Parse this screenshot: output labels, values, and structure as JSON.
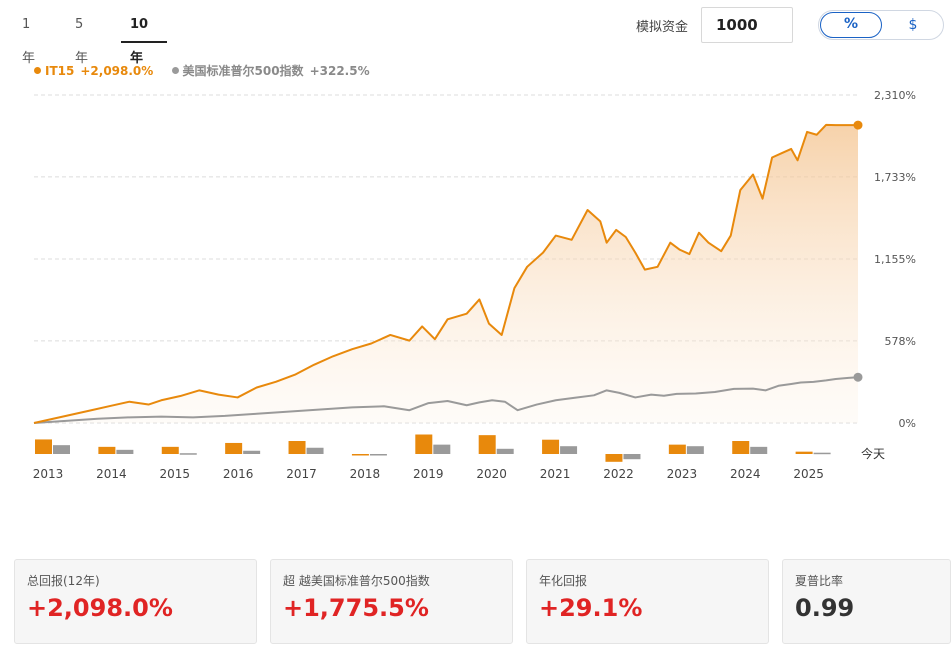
{
  "tabs": [
    {
      "label": "1年"
    },
    {
      "label": "5年"
    },
    {
      "label": "10年"
    }
  ],
  "active_tab": "10年",
  "simulator": {
    "label": "模拟资金",
    "value": "1000"
  },
  "unit_toggle": {
    "percent": "%",
    "dollar": "$",
    "selected": "%"
  },
  "legend": [
    {
      "name": "IT15",
      "value": "+2,098.0%",
      "color": "#e8890c"
    },
    {
      "name": "美国标准普尔500指数",
      "value": "+322.5%",
      "color": "#9a9a9a"
    }
  ],
  "today_label": "今天",
  "chart_data": {
    "type": "line",
    "ylim": [
      0,
      2310
    ],
    "y_ticks": [
      "0%",
      "578%",
      "1,155%",
      "1,733%",
      "2,310%"
    ],
    "y_tick_values": [
      0,
      578,
      1155,
      1733,
      2310
    ],
    "x_labels": [
      "2013",
      "2014",
      "2015",
      "2016",
      "2017",
      "2018",
      "2019",
      "2020",
      "2021",
      "2022",
      "2023",
      "2024",
      "2025"
    ],
    "x_range": [
      2013.0,
      2025.95
    ],
    "series": [
      {
        "name": "IT15",
        "color": "#e8890c",
        "x": [
          2013.0,
          2013.3,
          2013.6,
          2013.9,
          2014.2,
          2014.5,
          2014.8,
          2015.0,
          2015.3,
          2015.6,
          2015.9,
          2016.2,
          2016.5,
          2016.8,
          2017.1,
          2017.4,
          2017.7,
          2018.0,
          2018.3,
          2018.6,
          2018.9,
          2019.1,
          2019.3,
          2019.5,
          2019.8,
          2020.0,
          2020.15,
          2020.35,
          2020.55,
          2020.75,
          2021.0,
          2021.2,
          2021.45,
          2021.7,
          2021.9,
          2022.0,
          2022.15,
          2022.3,
          2022.45,
          2022.6,
          2022.8,
          2023.0,
          2023.15,
          2023.3,
          2023.45,
          2023.6,
          2023.8,
          2023.95,
          2024.1,
          2024.3,
          2024.45,
          2024.6,
          2024.75,
          2024.9,
          2025.0,
          2025.15,
          2025.3,
          2025.45,
          2025.6,
          2025.75,
          2025.95
        ],
        "y": [
          0,
          30,
          60,
          90,
          120,
          150,
          130,
          160,
          190,
          230,
          200,
          180,
          250,
          290,
          340,
          410,
          470,
          520,
          560,
          620,
          580,
          680,
          590,
          730,
          770,
          870,
          700,
          620,
          950,
          1100,
          1200,
          1320,
          1290,
          1500,
          1420,
          1270,
          1360,
          1310,
          1200,
          1080,
          1100,
          1270,
          1220,
          1190,
          1340,
          1270,
          1210,
          1320,
          1640,
          1750,
          1580,
          1870,
          1900,
          1930,
          1850,
          2050,
          2030,
          2100,
          2098,
          2098,
          2098
        ]
      },
      {
        "name": "美国标准普尔500指数",
        "color": "#9a9a9a",
        "x": [
          2013.0,
          2013.5,
          2014.0,
          2014.5,
          2015.0,
          2015.5,
          2016.0,
          2016.5,
          2017.0,
          2017.5,
          2018.0,
          2018.5,
          2018.9,
          2019.2,
          2019.5,
          2019.8,
          2020.0,
          2020.2,
          2020.4,
          2020.6,
          2020.9,
          2021.2,
          2021.5,
          2021.8,
          2022.0,
          2022.2,
          2022.45,
          2022.7,
          2022.9,
          2023.1,
          2023.4,
          2023.7,
          2024.0,
          2024.3,
          2024.5,
          2024.7,
          2024.9,
          2025.05,
          2025.25,
          2025.45,
          2025.6,
          2025.8,
          2025.95
        ],
        "y": [
          0,
          15,
          30,
          40,
          45,
          40,
          50,
          65,
          80,
          95,
          110,
          118,
          90,
          140,
          155,
          125,
          145,
          160,
          150,
          90,
          130,
          160,
          178,
          195,
          230,
          212,
          180,
          200,
          192,
          205,
          208,
          218,
          240,
          242,
          230,
          262,
          275,
          285,
          290,
          300,
          310,
          318,
          322.5
        ]
      }
    ],
    "annual": [
      {
        "year": "2013",
        "it15": 112,
        "sp500": 68
      },
      {
        "year": "2014",
        "it15": 55,
        "sp500": 32
      },
      {
        "year": "2015",
        "it15": 55,
        "sp500": 6
      },
      {
        "year": "2016",
        "it15": 85,
        "sp500": 25
      },
      {
        "year": "2017",
        "it15": 100,
        "sp500": 48
      },
      {
        "year": "2018",
        "it15": -6,
        "sp500": -9
      },
      {
        "year": "2019",
        "it15": 150,
        "sp500": 72
      },
      {
        "year": "2020",
        "it15": 145,
        "sp500": 40
      },
      {
        "year": "2021",
        "it15": 110,
        "sp500": 60
      },
      {
        "year": "2022",
        "it15": -60,
        "sp500": -40
      },
      {
        "year": "2023",
        "it15": 72,
        "sp500": 60
      },
      {
        "year": "2024",
        "it15": 100,
        "sp500": 55
      },
      {
        "year": "2025",
        "it15": 18,
        "sp500": 10
      }
    ]
  },
  "stats": [
    {
      "label": "总回报(12年)",
      "value": "+2,098.0%",
      "color": "#e02424"
    },
    {
      "label": "超 越美国标准普尔500指数",
      "value": "+1,775.5%",
      "color": "#e02424"
    },
    {
      "label": "年化回报",
      "value": "+29.1%",
      "color": "#e02424"
    },
    {
      "label": "夏普比率",
      "value": "0.99",
      "color": "#333333"
    }
  ]
}
